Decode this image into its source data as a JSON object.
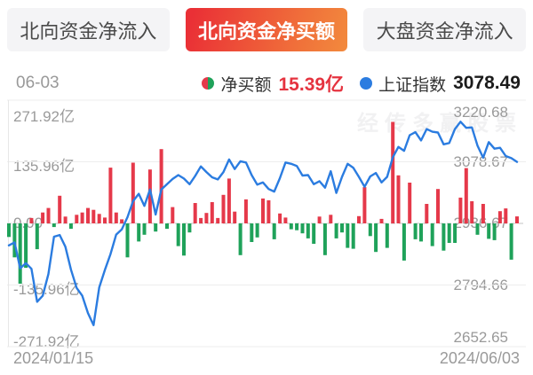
{
  "tabs": [
    {
      "label": "北向资金净流入",
      "active": false
    },
    {
      "label": "北向资金净买额",
      "active": true
    },
    {
      "label": "大盘资金净流入",
      "active": false
    }
  ],
  "legend": {
    "date": "06-03",
    "series1_name": "净买额",
    "series1_value": "15.39亿",
    "series2_name": "上证指数",
    "series2_value": "3078.49"
  },
  "watermark_text": "经传多赢股票",
  "colors": {
    "bar_positive": "#e5394a",
    "bar_negative": "#1fa25a",
    "index_line": "#2b7ce0",
    "active_tab_red": "#ea3036",
    "active_tab_orange": "#f28a3d",
    "value_red": "#e5333f",
    "axis_text": "#9a9a9a"
  },
  "chart_data": {
    "type": "bar+line",
    "x_labels": [
      "2024/01/15",
      "2024/06/03"
    ],
    "grid": true,
    "left_axis": {
      "ticks": [
        "271.92亿",
        "135.96亿",
        "0.00",
        "-135.96亿",
        "-271.92亿"
      ],
      "min": -271.92,
      "max": 271.92
    },
    "right_axis": {
      "ticks": [
        "3220.68",
        "3078.67",
        "2936.67",
        "2794.66",
        "2652.65"
      ],
      "min": 2652.65,
      "max": 3220.68
    },
    "series": [
      {
        "name": "净买额",
        "type": "bar",
        "axis": "left",
        "unit": "亿",
        "positive_color": "#e5394a",
        "negative_color": "#1fa25a",
        "values": [
          -30,
          -75,
          -133,
          -98,
          12,
          -57,
          24,
          34,
          -8,
          61,
          15,
          -12,
          19,
          24,
          34,
          30,
          21,
          13,
          123,
          24,
          9,
          -75,
          134,
          -40,
          -25,
          119,
          -18,
          164,
          -12,
          36,
          -50,
          -71,
          -20,
          45,
          12,
          23,
          47,
          12,
          63,
          99,
          26,
          -70,
          53,
          -41,
          -31,
          55,
          51,
          -35,
          22,
          13,
          -13,
          -15,
          -22,
          -33,
          -45,
          15,
          -70,
          19,
          -33,
          -20,
          -54,
          -56,
          16,
          80,
          -28,
          -63,
          10,
          -54,
          224,
          106,
          -82,
          90,
          -35,
          -40,
          43,
          -50,
          76,
          -60,
          -43,
          -43,
          57,
          122,
          49,
          -25,
          43,
          -34,
          -37,
          27,
          33,
          -80,
          15.39
        ]
      },
      {
        "name": "上证指数",
        "type": "line",
        "axis": "right",
        "color": "#2b7ce0",
        "values": [
          2886,
          2893,
          2833,
          2845,
          2832,
          2756,
          2770,
          2820,
          2906,
          2910,
          2883,
          2830,
          2788,
          2770,
          2730,
          2702,
          2789,
          2829,
          2866,
          2911,
          2923,
          2951,
          2988,
          3005,
          2977,
          3015,
          2957,
          3015,
          3027,
          3039,
          3048,
          3040,
          3027,
          3046,
          3068,
          3055,
          3043,
          3038,
          3055,
          3084,
          3062,
          3080,
          3077,
          3048,
          3026,
          3031,
          3016,
          3010,
          3041,
          3077,
          3074,
          3069,
          3047,
          3048,
          3027,
          3034,
          3019,
          3057,
          3007,
          3044,
          3074,
          3065,
          3044,
          3021,
          3045,
          3053,
          3031,
          3044,
          3089,
          3113,
          3104,
          3140,
          3147,
          3128,
          3154,
          3148,
          3146,
          3119,
          3122,
          3154,
          3171,
          3157,
          3158,
          3116,
          3088,
          3124,
          3109,
          3111,
          3092,
          3087,
          3078.49
        ]
      }
    ]
  }
}
